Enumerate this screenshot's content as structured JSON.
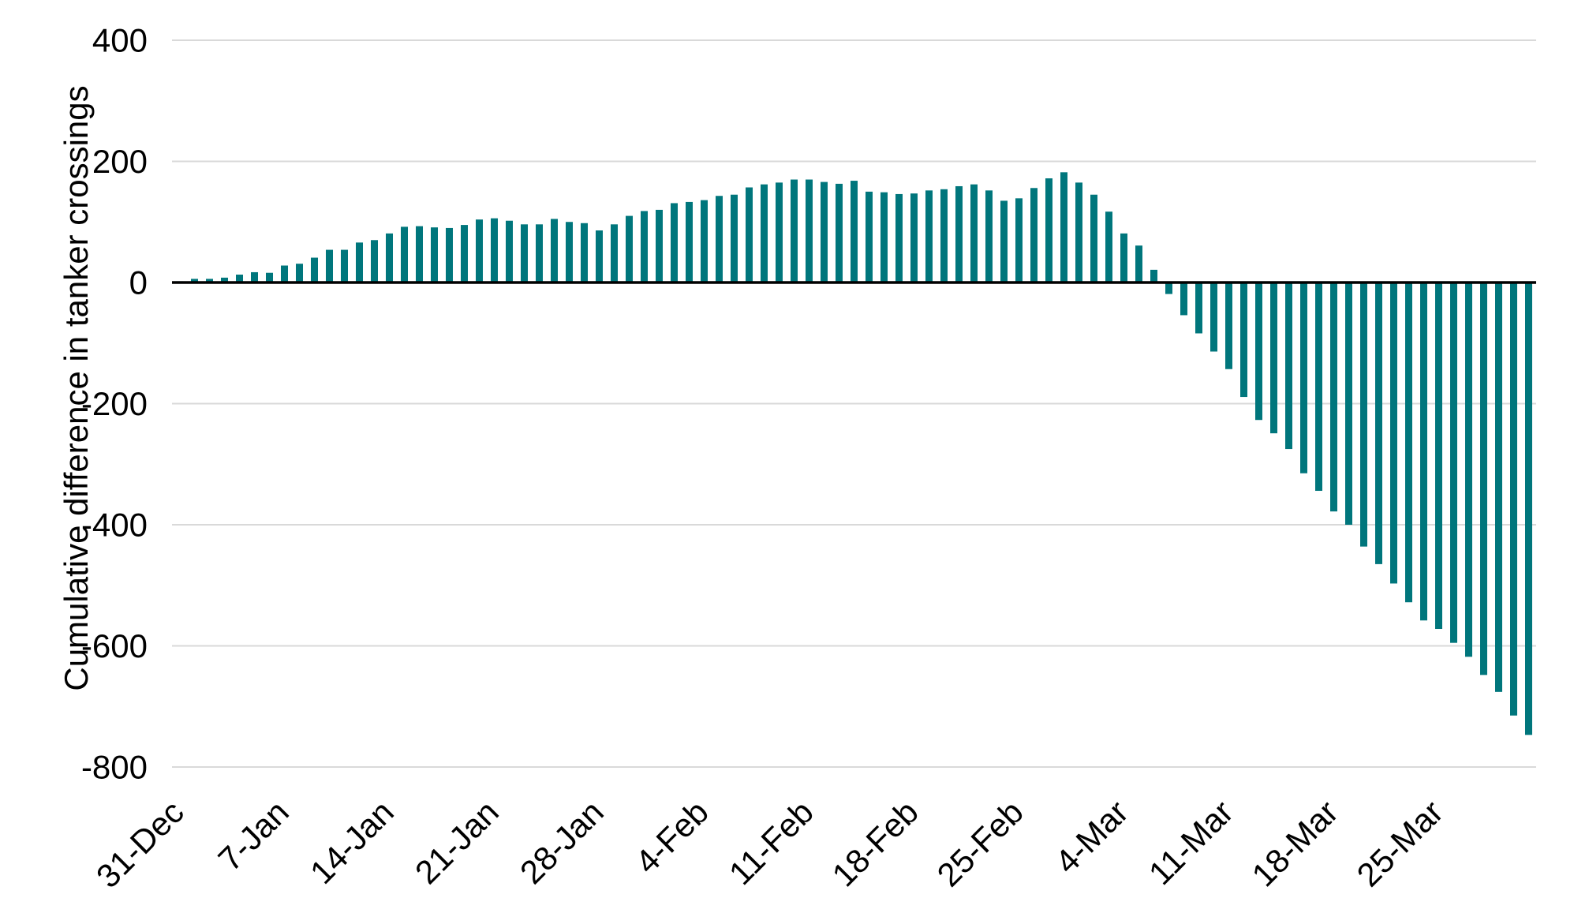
{
  "chart_data": {
    "type": "bar",
    "title": "",
    "xlabel": "",
    "ylabel": "Cumulative difference in tanker crossings",
    "categories": [
      "31-Dec",
      "1-Jan",
      "2-Jan",
      "3-Jan",
      "4-Jan",
      "5-Jan",
      "6-Jan",
      "7-Jan",
      "8-Jan",
      "9-Jan",
      "10-Jan",
      "11-Jan",
      "12-Jan",
      "13-Jan",
      "14-Jan",
      "15-Jan",
      "16-Jan",
      "17-Jan",
      "18-Jan",
      "19-Jan",
      "20-Jan",
      "21-Jan",
      "22-Jan",
      "23-Jan",
      "24-Jan",
      "25-Jan",
      "26-Jan",
      "27-Jan",
      "28-Jan",
      "29-Jan",
      "30-Jan",
      "31-Jan",
      "1-Feb",
      "2-Feb",
      "3-Feb",
      "4-Feb",
      "5-Feb",
      "6-Feb",
      "7-Feb",
      "8-Feb",
      "9-Feb",
      "10-Feb",
      "11-Feb",
      "12-Feb",
      "13-Feb",
      "14-Feb",
      "15-Feb",
      "16-Feb",
      "17-Feb",
      "18-Feb",
      "19-Feb",
      "20-Feb",
      "21-Feb",
      "22-Feb",
      "23-Feb",
      "24-Feb",
      "25-Feb",
      "26-Feb",
      "27-Feb",
      "28-Feb",
      "1-Mar",
      "2-Mar",
      "3-Mar",
      "4-Mar",
      "5-Mar",
      "6-Mar",
      "7-Mar",
      "8-Mar",
      "9-Mar",
      "10-Mar",
      "11-Mar",
      "12-Mar",
      "13-Mar",
      "14-Mar",
      "15-Mar",
      "16-Mar",
      "17-Mar",
      "18-Mar",
      "19-Mar",
      "20-Mar",
      "21-Mar",
      "22-Mar",
      "23-Mar",
      "24-Mar",
      "25-Mar",
      "26-Mar",
      "27-Mar",
      "28-Mar",
      "29-Mar",
      "30-Mar",
      "31-Mar"
    ],
    "values": [
      2,
      6,
      6,
      8,
      13,
      17,
      16,
      28,
      31,
      41,
      54,
      54,
      66,
      70,
      81,
      92,
      93,
      91,
      90,
      95,
      104,
      106,
      102,
      96,
      96,
      105,
      100,
      98,
      86,
      96,
      110,
      118,
      120,
      131,
      133,
      136,
      143,
      145,
      157,
      162,
      165,
      170,
      170,
      166,
      163,
      168,
      150,
      149,
      146,
      147,
      152,
      154,
      159,
      162,
      152,
      135,
      139,
      156,
      172,
      182,
      165,
      145,
      117,
      81,
      61,
      21,
      -19,
      -54,
      -84,
      -114,
      -143,
      -189,
      -227,
      -249,
      -275,
      -315,
      -344,
      -378,
      -400,
      -436,
      -465,
      -497,
      -528,
      -558,
      -572,
      -595,
      -618,
      -648,
      -676,
      -715,
      -747
    ],
    "x_tick_labels": [
      "31-Dec",
      "7-Jan",
      "14-Jan",
      "21-Jan",
      "28-Jan",
      "4-Feb",
      "11-Feb",
      "18-Feb",
      "25-Feb",
      "4-Mar",
      "11-Mar",
      "18-Mar",
      "25-Mar"
    ],
    "x_tick_every": 7,
    "y_ticks": [
      400,
      200,
      0,
      -200,
      -400,
      -600,
      -800
    ],
    "ylim": [
      -800,
      400
    ],
    "grid": "horizontal",
    "legend": "none",
    "bar_color": "#00767C",
    "grid_color": "#D9D9D9",
    "zero_line_color": "#000000",
    "text_color": "#000000"
  }
}
